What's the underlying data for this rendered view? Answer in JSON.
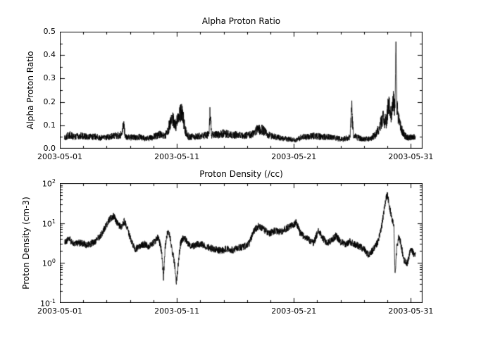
{
  "figure": {
    "bg": "#ffffff",
    "line_color": "#000000",
    "text_color": "#000000"
  },
  "chart_data": [
    {
      "type": "line",
      "title": "Alpha Proton Ratio",
      "ylabel": "Alpha Proton Ratio",
      "xlabel": "",
      "yscale": "linear",
      "ylim": [
        0.0,
        0.5
      ],
      "yticks": [
        0.0,
        0.1,
        0.2,
        0.3,
        0.4,
        0.5
      ],
      "ytick_labels": [
        "0.0",
        "0.1",
        "0.2",
        "0.3",
        "0.4",
        "0.5"
      ],
      "xlim": [
        0,
        31
      ],
      "xticks": [
        0,
        10,
        20,
        30
      ],
      "xtick_labels": [
        "2003-05-01",
        "2003-05-11",
        "2003-05-21",
        "2003-05-31"
      ],
      "x_minor_step": 2,
      "grid": false,
      "legend": "none",
      "series": [
        {
          "name": "alpha_proton_ratio",
          "color": "#000000",
          "seed": 20030501,
          "noise": 0.28,
          "keypoints": [
            [
              0.4,
              0.045
            ],
            [
              0.8,
              0.06
            ],
            [
              1.2,
              0.05
            ],
            [
              1.8,
              0.055
            ],
            [
              2.4,
              0.05
            ],
            [
              3.0,
              0.052
            ],
            [
              3.6,
              0.045
            ],
            [
              4.2,
              0.05
            ],
            [
              4.8,
              0.055
            ],
            [
              5.3,
              0.06
            ],
            [
              5.45,
              0.115
            ],
            [
              5.6,
              0.05
            ],
            [
              6.2,
              0.048
            ],
            [
              6.8,
              0.05
            ],
            [
              7.4,
              0.042
            ],
            [
              8.0,
              0.05
            ],
            [
              8.5,
              0.06
            ],
            [
              9.0,
              0.055
            ],
            [
              9.3,
              0.09
            ],
            [
              9.6,
              0.13
            ],
            [
              9.9,
              0.1
            ],
            [
              10.2,
              0.15
            ],
            [
              10.45,
              0.16
            ],
            [
              10.7,
              0.08
            ],
            [
              11.0,
              0.05
            ],
            [
              11.6,
              0.052
            ],
            [
              12.2,
              0.055
            ],
            [
              12.75,
              0.06
            ],
            [
              12.85,
              0.17
            ],
            [
              12.95,
              0.06
            ],
            [
              13.5,
              0.06
            ],
            [
              14.0,
              0.065
            ],
            [
              14.6,
              0.06
            ],
            [
              15.2,
              0.058
            ],
            [
              15.8,
              0.055
            ],
            [
              16.4,
              0.06
            ],
            [
              16.9,
              0.085
            ],
            [
              17.3,
              0.08
            ],
            [
              17.8,
              0.06
            ],
            [
              18.4,
              0.05
            ],
            [
              19.0,
              0.045
            ],
            [
              19.6,
              0.04
            ],
            [
              20.2,
              0.035
            ],
            [
              20.7,
              0.05
            ],
            [
              21.2,
              0.05
            ],
            [
              21.8,
              0.055
            ],
            [
              22.4,
              0.05
            ],
            [
              23.0,
              0.05
            ],
            [
              23.6,
              0.045
            ],
            [
              24.2,
              0.04
            ],
            [
              24.8,
              0.05
            ],
            [
              24.95,
              0.165
            ],
            [
              25.1,
              0.055
            ],
            [
              25.6,
              0.045
            ],
            [
              26.1,
              0.04
            ],
            [
              26.6,
              0.045
            ],
            [
              27.0,
              0.06
            ],
            [
              27.3,
              0.09
            ],
            [
              27.6,
              0.13
            ],
            [
              27.9,
              0.11
            ],
            [
              28.1,
              0.2
            ],
            [
              28.3,
              0.14
            ],
            [
              28.5,
              0.22
            ],
            [
              28.65,
              0.16
            ],
            [
              28.72,
              0.46
            ],
            [
              28.8,
              0.18
            ],
            [
              29.0,
              0.12
            ],
            [
              29.2,
              0.08
            ],
            [
              29.5,
              0.055
            ],
            [
              29.8,
              0.045
            ],
            [
              30.1,
              0.05
            ],
            [
              30.4,
              0.05
            ]
          ]
        }
      ]
    },
    {
      "type": "line",
      "title": "Proton Density (/cc)",
      "ylabel": "Proton Density (cm-3)",
      "xlabel": "",
      "yscale": "log",
      "ylim": [
        0.1,
        100
      ],
      "ytick_exponents": [
        -1,
        0,
        1,
        2
      ],
      "xlim": [
        0,
        31
      ],
      "xticks": [
        0,
        10,
        20,
        30
      ],
      "xtick_labels": [
        "2003-05-01",
        "2003-05-11",
        "2003-05-21",
        "2003-05-31"
      ],
      "x_minor_step": 2,
      "grid": false,
      "legend": "none",
      "series": [
        {
          "name": "proton_density",
          "color": "#000000",
          "seed": 20030511,
          "noise_dex": 0.09,
          "keypoints": [
            [
              0.4,
              3.5
            ],
            [
              0.8,
              4.0
            ],
            [
              1.2,
              3.0
            ],
            [
              1.8,
              3.2
            ],
            [
              2.4,
              2.8
            ],
            [
              3.0,
              3.5
            ],
            [
              3.5,
              5.0
            ],
            [
              3.9,
              8.0
            ],
            [
              4.3,
              13
            ],
            [
              4.6,
              15
            ],
            [
              4.9,
              10
            ],
            [
              5.2,
              8
            ],
            [
              5.5,
              11
            ],
            [
              5.8,
              7
            ],
            [
              6.1,
              3.5
            ],
            [
              6.4,
              2.2
            ],
            [
              6.8,
              2.6
            ],
            [
              7.2,
              3.0
            ],
            [
              7.6,
              2.6
            ],
            [
              8.0,
              3.2
            ],
            [
              8.4,
              4.5
            ],
            [
              8.7,
              2.0
            ],
            [
              8.85,
              0.4
            ],
            [
              9.0,
              2.5
            ],
            [
              9.2,
              6.0
            ],
            [
              9.4,
              5.0
            ],
            [
              9.6,
              2.0
            ],
            [
              9.8,
              1.0
            ],
            [
              9.95,
              0.32
            ],
            [
              10.1,
              0.8
            ],
            [
              10.3,
              3.0
            ],
            [
              10.6,
              4.5
            ],
            [
              10.9,
              3.2
            ],
            [
              11.3,
              2.6
            ],
            [
              11.8,
              3.0
            ],
            [
              12.3,
              2.8
            ],
            [
              12.8,
              2.4
            ],
            [
              13.3,
              2.2
            ],
            [
              13.8,
              2.0
            ],
            [
              14.3,
              2.3
            ],
            [
              14.8,
              2.1
            ],
            [
              15.3,
              2.4
            ],
            [
              15.8,
              2.6
            ],
            [
              16.2,
              3.2
            ],
            [
              16.6,
              6.5
            ],
            [
              17.0,
              8.5
            ],
            [
              17.4,
              7.0
            ],
            [
              17.9,
              5.5
            ],
            [
              18.4,
              6.5
            ],
            [
              18.9,
              6.0
            ],
            [
              19.4,
              7.5
            ],
            [
              19.9,
              9.0
            ],
            [
              20.2,
              10.5
            ],
            [
              20.5,
              6.0
            ],
            [
              20.9,
              4.5
            ],
            [
              21.3,
              3.8
            ],
            [
              21.7,
              3.2
            ],
            [
              22.1,
              6.5
            ],
            [
              22.4,
              4.5
            ],
            [
              22.8,
              3.2
            ],
            [
              23.2,
              3.6
            ],
            [
              23.6,
              4.8
            ],
            [
              24.0,
              3.4
            ],
            [
              24.4,
              3.0
            ],
            [
              24.8,
              3.4
            ],
            [
              25.2,
              3.0
            ],
            [
              25.6,
              2.6
            ],
            [
              26.0,
              2.2
            ],
            [
              26.4,
              1.6
            ],
            [
              26.8,
              2.2
            ],
            [
              27.2,
              3.5
            ],
            [
              27.5,
              8
            ],
            [
              27.7,
              20
            ],
            [
              27.9,
              45
            ],
            [
              28.0,
              50
            ],
            [
              28.1,
              35
            ],
            [
              28.25,
              20
            ],
            [
              28.4,
              12
            ],
            [
              28.55,
              9
            ],
            [
              28.65,
              0.45
            ],
            [
              28.8,
              2.5
            ],
            [
              29.0,
              5.0
            ],
            [
              29.15,
              3.0
            ],
            [
              29.4,
              1.2
            ],
            [
              29.7,
              1.0
            ],
            [
              30.0,
              2.2
            ],
            [
              30.2,
              1.8
            ],
            [
              30.4,
              1.5
            ]
          ]
        }
      ]
    }
  ]
}
